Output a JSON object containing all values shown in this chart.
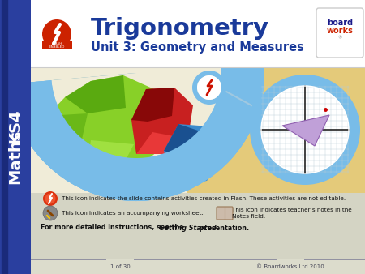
{
  "title": "Trigonometry",
  "subtitle": "Unit 3: Geometry and Measures",
  "left_label": "KS4 Maths",
  "footer_left": "1 of 30",
  "footer_right": "© Boardworks Ltd 2010",
  "text1": "This icon indicates the slide contains activities created in Flash. These activities are not editable.",
  "text2": "This icon indicates an accompanying worksheet.",
  "text3": "This icon indicates teacher’s notes in the\nNotes field.",
  "text4": "For more detailed instructions, see the ",
  "text4b": "Getting Started",
  "text4c": " presentation.",
  "bg_white": "#ffffff",
  "bg_cream": "#f5efe0",
  "bg_tan": "#e8d49a",
  "bg_info": "#d8d8cc",
  "bg_footer": "#e0e0d4",
  "left_bar_color": "#2a3f9f",
  "left_bar_dark": "#1a2a7a",
  "arc_blue": "#7abee8",
  "arc_blue_light": "#a8d4f0",
  "title_color": "#1a3a9a",
  "subtitle_color": "#1a3a9a",
  "text_color": "#222222",
  "footer_text": "#555555",
  "green_light": "#8cd430",
  "green_dark": "#5a9a10",
  "red_shape": "#cc2020",
  "red_dark": "#8a1010",
  "blue_shape": "#3a88cc",
  "blue_dark": "#1a5088"
}
